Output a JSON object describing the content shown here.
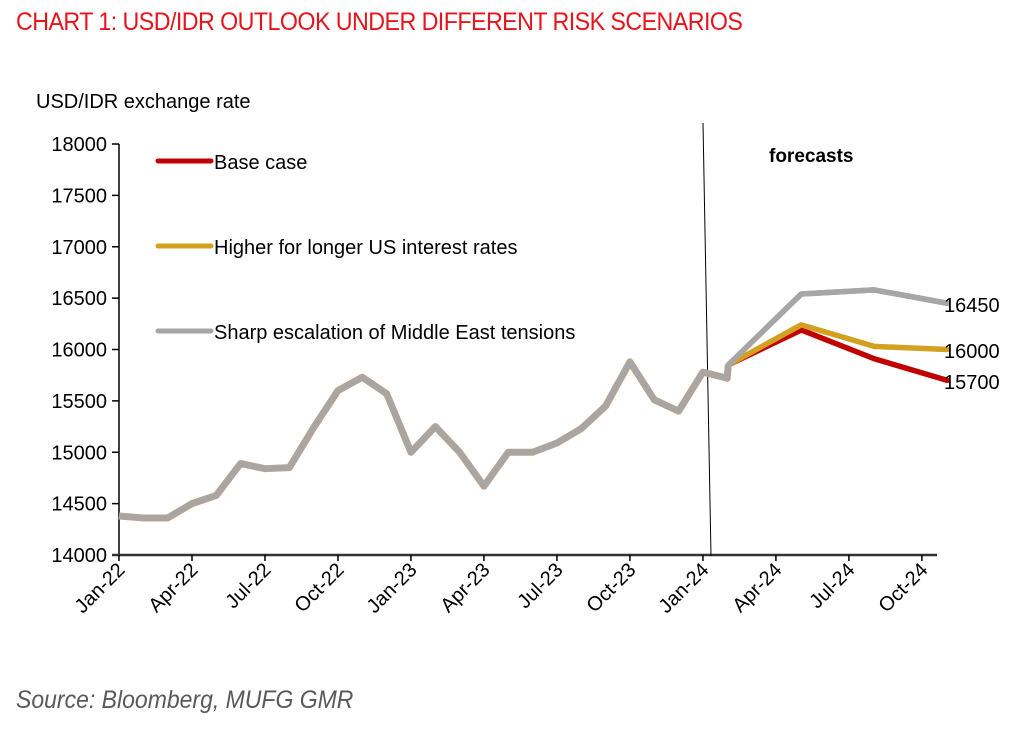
{
  "title": "CHART 1: USD/IDR OUTLOOK UNDER DIFFERENT RISK SCENARIOS",
  "source": "Source: Bloomberg, MUFG GMR",
  "chart_data": {
    "type": "line",
    "title": "CHART 1: USD/IDR OUTLOOK UNDER DIFFERENT RISK SCENARIOS",
    "ylabel": "USD/IDR exchange rate",
    "xlabel": "",
    "ylim": [
      14000,
      18000
    ],
    "yticks": [
      14000,
      14500,
      15000,
      15500,
      16000,
      16500,
      17000,
      17500,
      18000
    ],
    "xticks": [
      "Jan-22",
      "Apr-22",
      "Jul-22",
      "Oct-22",
      "Jan-23",
      "Apr-23",
      "Jul-23",
      "Oct-23",
      "Jan-24",
      "Apr-24",
      "Jul-24",
      "Oct-24"
    ],
    "grid": false,
    "legend_position": "top-left",
    "annotation": "forecasts",
    "history": {
      "x": [
        "Jan-22",
        "Feb-22",
        "Mar-22",
        "Apr-22",
        "May-22",
        "Jun-22",
        "Jul-22",
        "Aug-22",
        "Sep-22",
        "Oct-22",
        "Nov-22",
        "Dec-22",
        "Jan-23",
        "Feb-23",
        "Mar-23",
        "Apr-23",
        "May-23",
        "Jun-23",
        "Jul-23",
        "Aug-23",
        "Sep-23",
        "Oct-23",
        "Nov-23",
        "Dec-23",
        "Jan-24",
        "Feb-24"
      ],
      "values": [
        14380,
        14360,
        14360,
        14500,
        14580,
        14890,
        14840,
        14850,
        15240,
        15600,
        15730,
        15570,
        15000,
        15250,
        15000,
        14670,
        15000,
        15000,
        15090,
        15230,
        15450,
        15880,
        15510,
        15400,
        15780,
        15720
      ]
    },
    "forecast_x": [
      "Feb-24",
      "May-24",
      "Aug-24",
      "Nov-24"
    ],
    "series": [
      {
        "name": "Base case",
        "color": "#c00000",
        "forecast": [
          15850,
          16190,
          15910,
          15700
        ],
        "end_label": "15700"
      },
      {
        "name": "Higher for longer US interest rates",
        "color": "#d4a020",
        "forecast": [
          15850,
          16240,
          16030,
          16000
        ],
        "end_label": "16000"
      },
      {
        "name": "Sharp escalation of Middle East tensions",
        "color": "#a6a6a6",
        "forecast": [
          15850,
          16540,
          16580,
          16450
        ],
        "end_label": "16450"
      }
    ]
  }
}
